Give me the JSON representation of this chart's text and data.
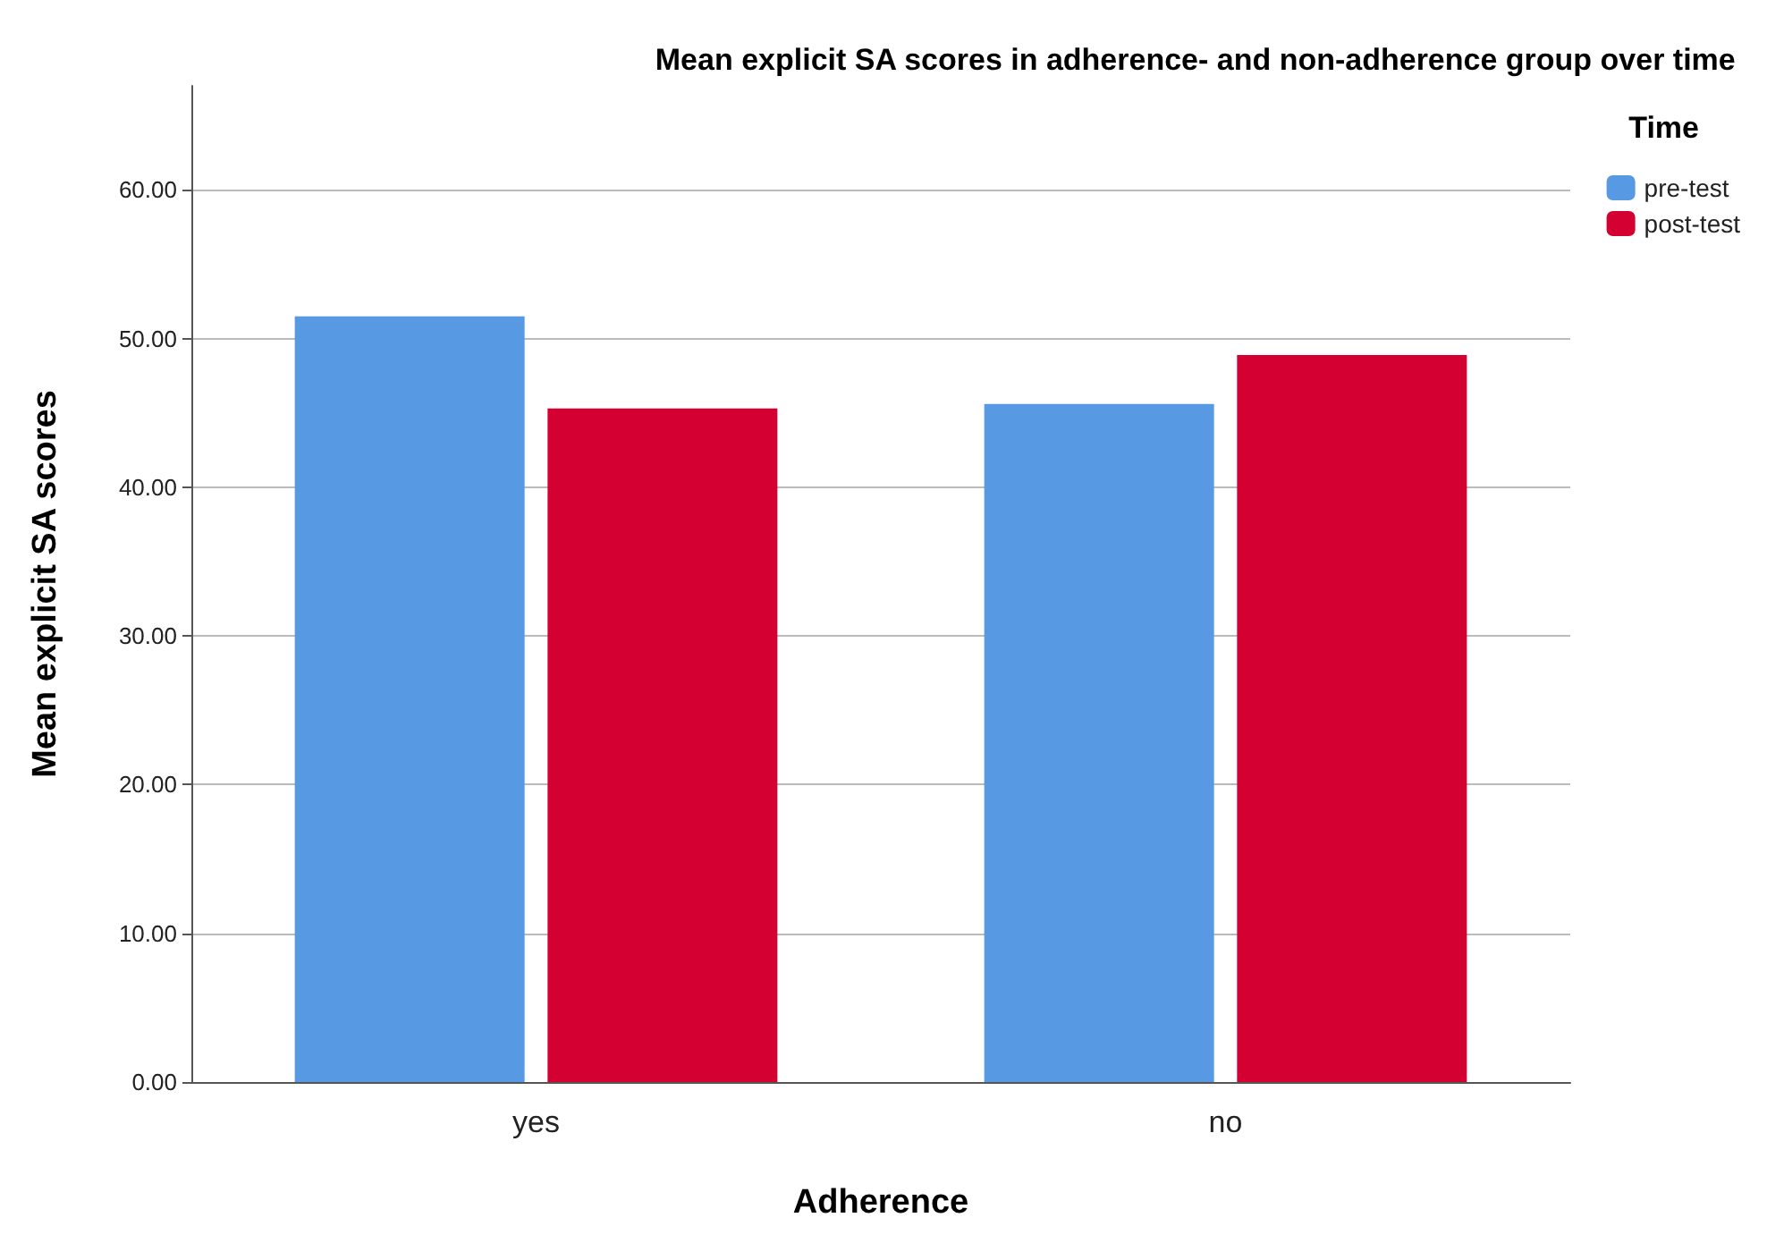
{
  "chart_data": {
    "type": "bar",
    "title": "Mean explicit SA scores in adherence- and non-adherence group over time",
    "xlabel": "Adherence",
    "ylabel": "Mean explicit SA scores",
    "legend_title": "Time",
    "categories": [
      "yes",
      "no"
    ],
    "series": [
      {
        "name": "pre-test",
        "color": "#5899e4",
        "values": [
          51.5,
          45.6
        ]
      },
      {
        "name": "post-test",
        "color": "#d50032",
        "values": [
          45.3,
          48.9
        ]
      }
    ],
    "ylim": [
      0,
      67
    ],
    "yticks": [
      {
        "value": 0,
        "label": "0.00"
      },
      {
        "value": 10,
        "label": "10.00"
      },
      {
        "value": 20,
        "label": "20.00"
      },
      {
        "value": 30,
        "label": "30.00"
      },
      {
        "value": 40,
        "label": "40.00"
      },
      {
        "value": 50,
        "label": "50.00"
      },
      {
        "value": 60,
        "label": "60.00"
      }
    ],
    "grid": "y",
    "legend": "top right"
  }
}
